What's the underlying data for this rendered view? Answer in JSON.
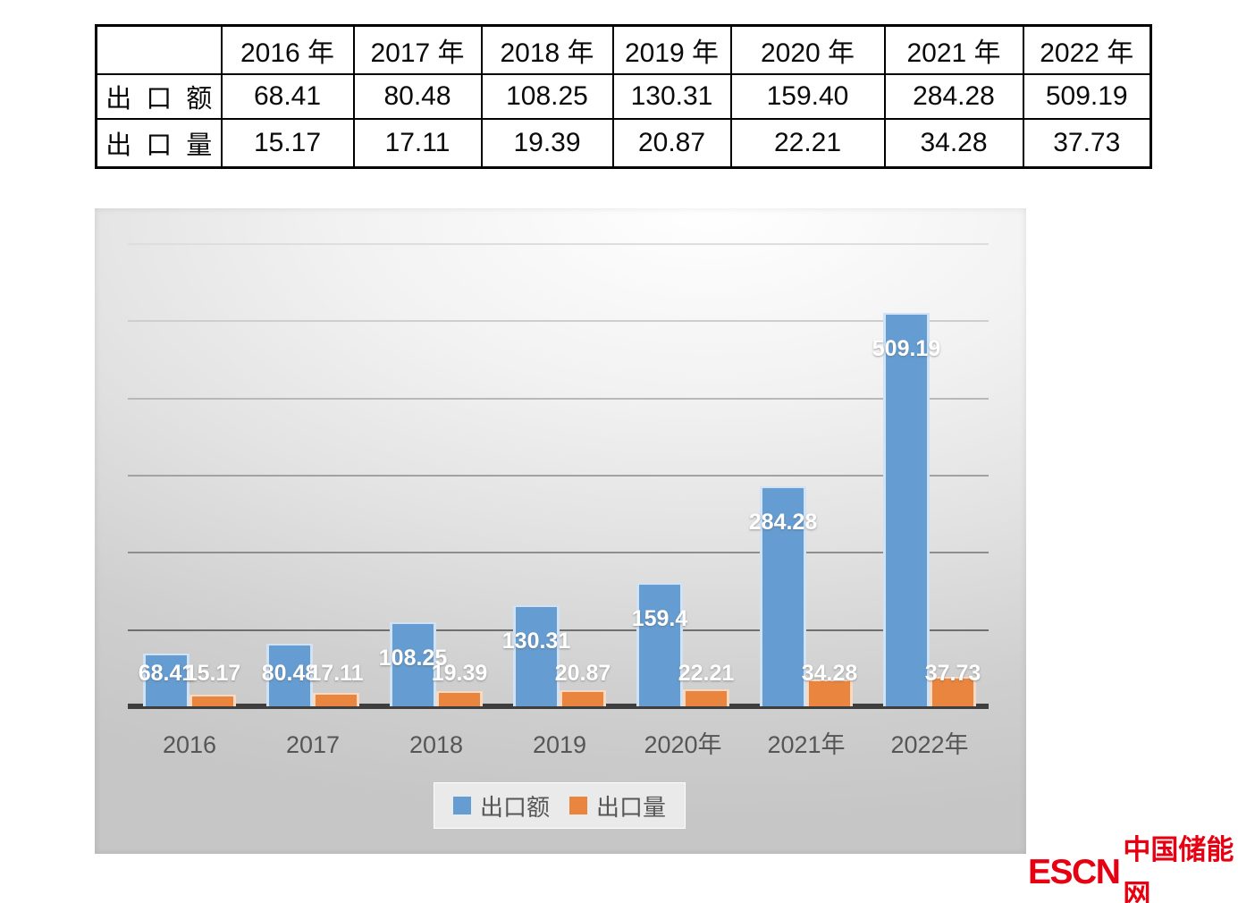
{
  "table": {
    "col_headers": [
      "",
      "2016 年",
      "2017 年",
      "2018 年",
      "2019 年",
      "2020 年",
      "2021 年",
      "2022 年"
    ],
    "rows": [
      {
        "label": "出口额",
        "values": [
          "68.41",
          "80.48",
          "108.25",
          "130.31",
          "159.40",
          "284.28",
          "509.19"
        ]
      },
      {
        "label": "出口量",
        "values": [
          "15.17",
          "17.11",
          "19.39",
          "20.87",
          "22.21",
          "34.28",
          "37.73"
        ]
      }
    ]
  },
  "chart_data": {
    "type": "bar",
    "title": "",
    "categories": [
      "2016",
      "2017",
      "2018",
      "2019",
      "2020年",
      "2021年",
      "2022年"
    ],
    "series": [
      {
        "name": "出口额",
        "color": "#659dd2",
        "values": [
          68.41,
          80.48,
          108.25,
          130.31,
          159.4,
          284.28,
          509.19
        ],
        "labels": [
          "68.41",
          "80.48",
          "108.25",
          "130.31",
          "159.4",
          "284.28",
          "509.19"
        ]
      },
      {
        "name": "出口量",
        "color": "#e9853e",
        "values": [
          15.17,
          17.11,
          19.39,
          20.87,
          22.21,
          34.28,
          37.73
        ],
        "labels": [
          "15.17",
          "17.11",
          "19.39",
          "20.87",
          "22.21",
          "34.28",
          "37.73"
        ]
      }
    ],
    "ylim": [
      0,
      645
    ],
    "gridline_values": [
      100,
      200,
      300,
      400,
      500,
      600
    ],
    "y_tick_labels_visible": false,
    "grid": "horizontal",
    "legend_position": "bottom",
    "data_label_color": "#ffffff",
    "axis_color": "#3e3e3e"
  },
  "watermark": {
    "text_latin": "ESCN",
    "text_cjk": "中国储能网",
    "color": "#e60012"
  }
}
